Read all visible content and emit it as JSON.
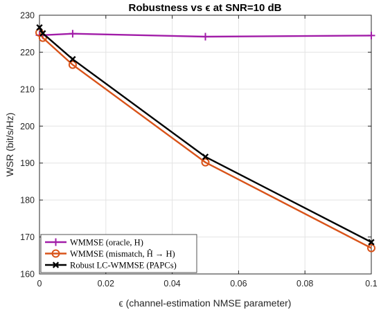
{
  "chart_data": {
    "type": "line",
    "title": "Robustness vs ϵ at SNR=10 dB",
    "xlabel": "ϵ (channel-estimation NMSE parameter)",
    "ylabel": "WSR (bit/s/Hz)",
    "xlim": [
      0,
      0.1
    ],
    "ylim": [
      160,
      230
    ],
    "xticks": [
      0,
      0.02,
      0.04,
      0.06,
      0.08,
      0.1
    ],
    "xtick_labels": [
      "0",
      "0.02",
      "0.04",
      "0.06",
      "0.08",
      "0.1"
    ],
    "yticks": [
      160,
      170,
      180,
      190,
      200,
      210,
      220,
      230
    ],
    "ytick_labels": [
      "160",
      "170",
      "180",
      "190",
      "200",
      "210",
      "220",
      "230"
    ],
    "grid": true,
    "legend_position": "bottom-left",
    "series": [
      {
        "name": "WMMSE (oracle, H)",
        "color": "#A11CA8",
        "marker": "plus",
        "x": [
          0,
          0.001,
          0.01,
          0.05,
          0.1
        ],
        "y": [
          224.6,
          224.6,
          225.0,
          224.2,
          224.5
        ]
      },
      {
        "name": "WMMSE (mismatch, Ĥ → H)",
        "color": "#D95319",
        "marker": "circle",
        "x": [
          0,
          0.001,
          0.01,
          0.05,
          0.1
        ],
        "y": [
          225.3,
          223.9,
          216.6,
          190.2,
          167.0
        ]
      },
      {
        "name": "Robust LC-WMMSE (PAPCs)",
        "color": "#000000",
        "marker": "cross",
        "x": [
          0,
          0.001,
          0.01,
          0.05,
          0.1
        ],
        "y": [
          226.7,
          225.1,
          218.1,
          191.7,
          168.6
        ]
      }
    ]
  }
}
